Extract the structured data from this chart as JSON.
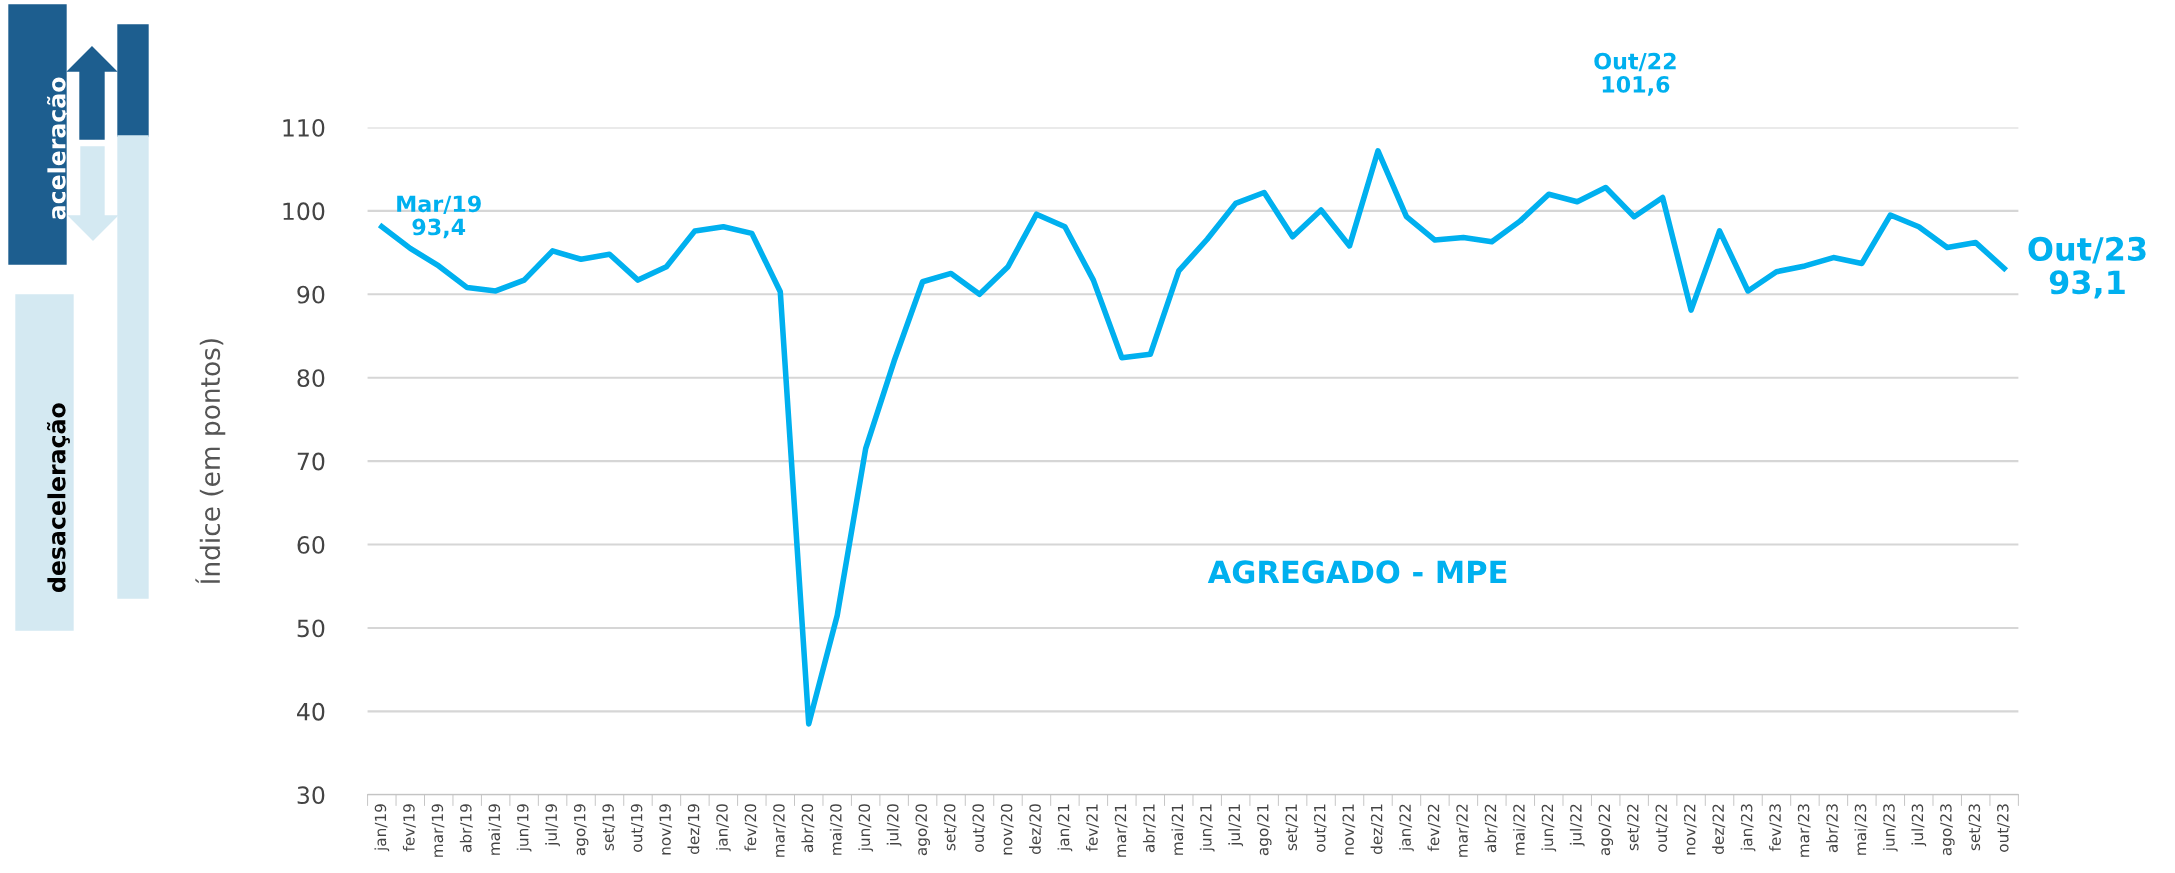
{
  "chart_data": {
    "type": "line",
    "ylabel": "Índice (em pontos)",
    "categories": [
      "jan/19",
      "fev/19",
      "mar/19",
      "abr/19",
      "mai/19",
      "jun/19",
      "jul/19",
      "ago/19",
      "set/19",
      "out/19",
      "nov/19",
      "dez/19",
      "jan/20",
      "fev/20",
      "mar/20",
      "abr/20",
      "mai/20",
      "jun/20",
      "jul/20",
      "ago/20",
      "set/20",
      "out/20",
      "nov/20",
      "dez/20",
      "jan/21",
      "fev/21",
      "mar/21",
      "abr/21",
      "mai/21",
      "jun/21",
      "jul/21",
      "ago/21",
      "set/21",
      "out/21",
      "nov/21",
      "dez/21",
      "jan/22",
      "fev/22",
      "mar/22",
      "abr/22",
      "mai/22",
      "jun/22",
      "jul/22",
      "ago/22",
      "set/22",
      "out/22",
      "nov/22",
      "dez/22",
      "jan/23",
      "fev/23",
      "mar/23",
      "abr/23",
      "mai/23",
      "jun/23",
      "jul/23",
      "ago/23",
      "set/23",
      "out/23"
    ],
    "series": [
      {
        "color": "#00b0ef",
        "values": [
          98.1,
          95.5,
          93.4,
          90.8,
          90.4,
          91.7,
          95.2,
          94.2,
          94.8,
          91.7,
          93.3,
          97.6,
          98.1,
          97.3,
          90.3,
          38.5,
          51.5,
          71.5,
          82,
          91.5,
          92.5,
          90,
          93.3,
          99.6,
          98.1,
          91.7,
          82.4,
          82.8,
          92.8,
          96.6,
          100.9,
          102.2,
          96.9,
          100.1,
          95.8,
          107.2,
          99.3,
          96.5,
          96.8,
          96.3,
          98.8,
          102,
          101.1,
          102.8,
          99.3,
          101.6,
          88.1,
          97.6,
          90.4,
          92.7,
          93.4,
          94.4,
          93.7,
          99.5,
          98.1,
          95.6,
          96.2,
          93.1
        ]
      }
    ],
    "ylim": [
      30,
      110
    ],
    "yticks": [
      30,
      40,
      50,
      60,
      70,
      80,
      90,
      100,
      110
    ],
    "grid": "y",
    "marker": "none",
    "line_style": "solid",
    "annotations": [
      {
        "text": "Mar/19\n93,4",
        "x": "mar/19",
        "y": 93.4
      },
      "Out/22\n101,6",
      {
        "text": "Out/23\n93,1",
        "x": "out/23",
        "y": 93.1
      },
      "AGREGADO - MPE",
      "aceleração",
      "desaceleração"
    ]
  }
}
